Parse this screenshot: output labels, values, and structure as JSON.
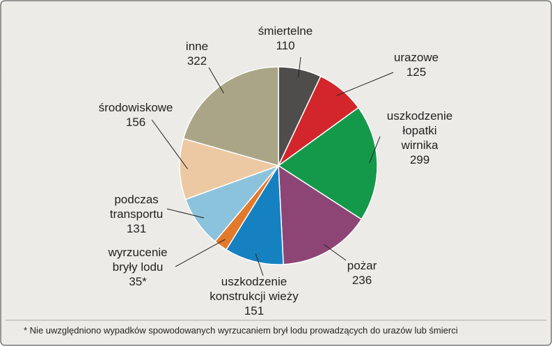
{
  "chart_data": {
    "type": "pie",
    "categories": [
      "śmiertelne",
      "urazowe",
      "uszkodzenie\nłopatki\nwirnika",
      "pożar",
      "uszkodzenie\nkonstrukcji wieży",
      "wyrzucenie\nbryły lodu",
      "podczas\ntransportu",
      "środowiskowe",
      "inne"
    ],
    "values": [
      110,
      125,
      299,
      236,
      151,
      35,
      131,
      156,
      322
    ],
    "value_labels": [
      "110",
      "125",
      "299",
      "236",
      "151",
      "35*",
      "131",
      "156",
      "322"
    ],
    "colors": [
      "#4f4d4b",
      "#d3262c",
      "#14994b",
      "#8d4576",
      "#1581c1",
      "#e2792b",
      "#8cc3dc",
      "#edc9a3",
      "#a9a586"
    ],
    "footnote": "* Nie uwzględniono wypadków spowodowanych wyrzucaniem brył lodu prowadzących do urazów lub śmierci"
  }
}
